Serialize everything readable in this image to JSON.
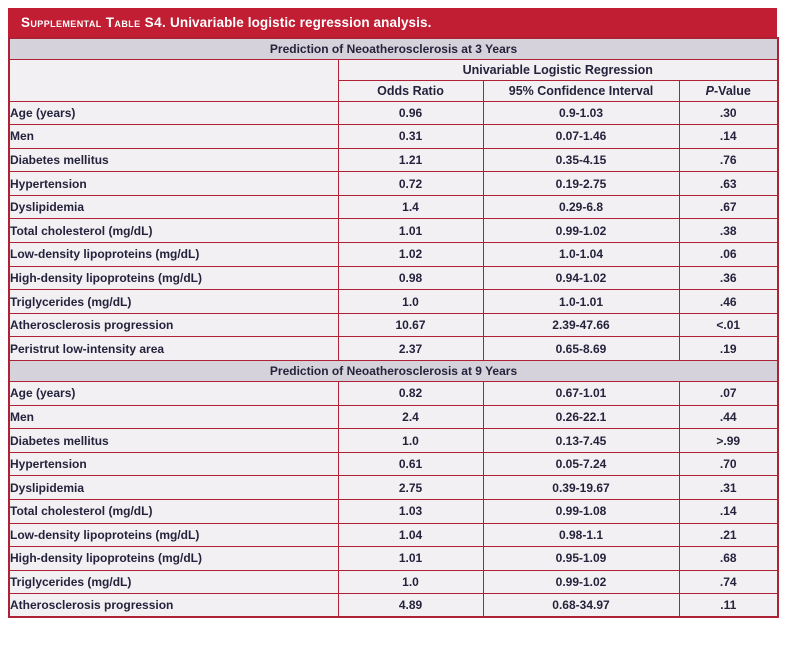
{
  "title": {
    "smallcaps": "Supplemental Table S4.",
    "rest": " Univariable logistic regression analysis."
  },
  "colors": {
    "accent_red": "#C11E34",
    "border_red": "#AD2235",
    "band_background": "#D6D2DB",
    "row_background": "#F2F0F3",
    "text_dark": "#25233B",
    "title_text": "#FFFFFF"
  },
  "columns": {
    "group_header": "Univariable Logistic Regression",
    "odds_ratio": "Odds Ratio",
    "confidence_interval": "95% Confidence Interval",
    "p_italic": "P",
    "p_rest": "-Value"
  },
  "sections": [
    {
      "heading": "Prediction of Neoatherosclerosis at 3 Years",
      "rows": [
        {
          "label": "Age (years)",
          "odds_ratio": "0.96",
          "ci": "0.9-1.03",
          "p_value": ".30"
        },
        {
          "label": "Men",
          "odds_ratio": "0.31",
          "ci": "0.07-1.46",
          "p_value": ".14"
        },
        {
          "label": "Diabetes mellitus",
          "odds_ratio": "1.21",
          "ci": "0.35-4.15",
          "p_value": ".76"
        },
        {
          "label": "Hypertension",
          "odds_ratio": "0.72",
          "ci": "0.19-2.75",
          "p_value": ".63"
        },
        {
          "label": "Dyslipidemia",
          "odds_ratio": "1.4",
          "ci": "0.29-6.8",
          "p_value": ".67"
        },
        {
          "label": "Total cholesterol (mg/dL)",
          "odds_ratio": "1.01",
          "ci": "0.99-1.02",
          "p_value": ".38"
        },
        {
          "label": "Low-density lipoproteins (mg/dL)",
          "odds_ratio": "1.02",
          "ci": "1.0-1.04",
          "p_value": ".06"
        },
        {
          "label": "High-density lipoproteins (mg/dL)",
          "odds_ratio": "0.98",
          "ci": "0.94-1.02",
          "p_value": ".36"
        },
        {
          "label": "Triglycerides (mg/dL)",
          "odds_ratio": "1.0",
          "ci": "1.0-1.01",
          "p_value": ".46"
        },
        {
          "label": "Atherosclerosis progression",
          "odds_ratio": "10.67",
          "ci": "2.39-47.66",
          "p_value": "<.01"
        },
        {
          "label": "Peristrut low-intensity area",
          "odds_ratio": "2.37",
          "ci": "0.65-8.69",
          "p_value": ".19"
        }
      ]
    },
    {
      "heading": "Prediction of Neoatherosclerosis at 9 Years",
      "rows": [
        {
          "label": "Age (years)",
          "odds_ratio": "0.82",
          "ci": "0.67-1.01",
          "p_value": ".07"
        },
        {
          "label": "Men",
          "odds_ratio": "2.4",
          "ci": "0.26-22.1",
          "p_value": ".44"
        },
        {
          "label": "Diabetes mellitus",
          "odds_ratio": "1.0",
          "ci": "0.13-7.45",
          "p_value": ">.99"
        },
        {
          "label": "Hypertension",
          "odds_ratio": "0.61",
          "ci": "0.05-7.24",
          "p_value": ".70"
        },
        {
          "label": "Dyslipidemia",
          "odds_ratio": "2.75",
          "ci": "0.39-19.67",
          "p_value": ".31"
        },
        {
          "label": "Total cholesterol (mg/dL)",
          "odds_ratio": "1.03",
          "ci": "0.99-1.08",
          "p_value": ".14"
        },
        {
          "label": "Low-density lipoproteins (mg/dL)",
          "odds_ratio": "1.04",
          "ci": "0.98-1.1",
          "p_value": ".21"
        },
        {
          "label": "High-density lipoproteins (mg/dL)",
          "odds_ratio": "1.01",
          "ci": "0.95-1.09",
          "p_value": ".68"
        },
        {
          "label": "Triglycerides (mg/dL)",
          "odds_ratio": "1.0",
          "ci": "0.99-1.02",
          "p_value": ".74"
        },
        {
          "label": "Atherosclerosis progression",
          "odds_ratio": "4.89",
          "ci": "0.68-34.97",
          "p_value": ".11"
        }
      ]
    }
  ]
}
